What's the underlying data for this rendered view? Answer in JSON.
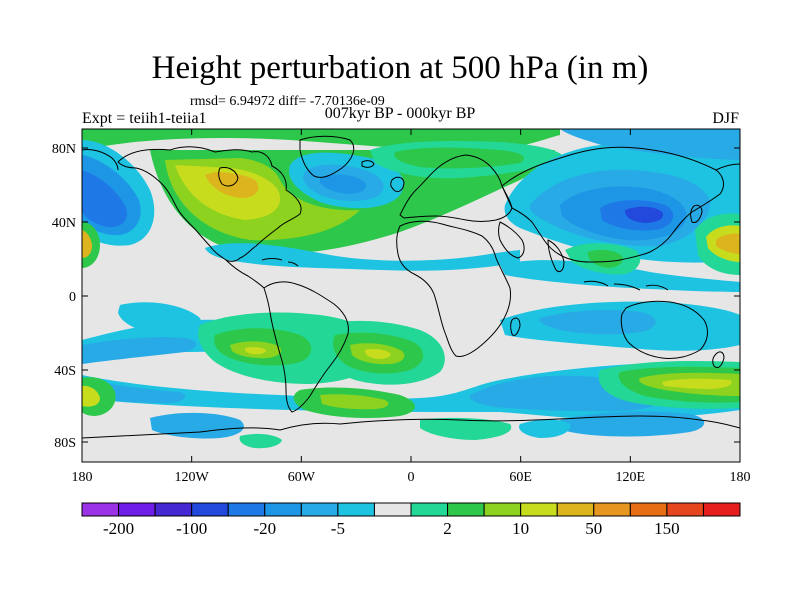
{
  "title": "Height perturbation at 500 hPa (in m)",
  "stats": "rmsd= 6.94972 diff= -7.70136e-09",
  "experiment": "Expt = teiih1-teiia1",
  "period": "007kyr BP - 000kyr BP",
  "season": "DJF",
  "map": {
    "lat_ticks": [
      "80N",
      "40N",
      "0",
      "40S",
      "80S"
    ],
    "lon_ticks": [
      "180",
      "120W",
      "60W",
      "0",
      "60E",
      "120E",
      "180"
    ],
    "background_color": "#e6e6e6",
    "coastline_color": "#000000"
  },
  "colorbar": {
    "colors": [
      "#9a32e6",
      "#6e1ee6",
      "#4628d2",
      "#2348dc",
      "#1e78e6",
      "#1e96e6",
      "#28aae6",
      "#1ec3e1",
      "#e6e6e6",
      "#23d796",
      "#2dc84b",
      "#8cd21e",
      "#c8dc1e",
      "#dcb41e",
      "#e6961e",
      "#e66e14",
      "#e6461e",
      "#e61e1e"
    ],
    "labels": [
      "-200",
      "-100",
      "-20",
      "-5",
      "2",
      "10",
      "50",
      "150"
    ]
  }
}
